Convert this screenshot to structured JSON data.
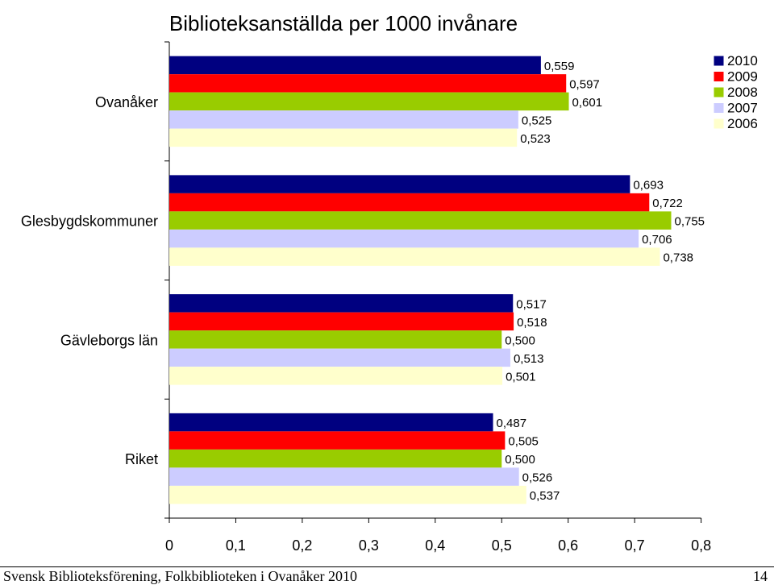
{
  "chart_data": {
    "type": "bar",
    "orientation": "horizontal",
    "title": "Biblioteksanställda per 1000 invånare",
    "xlabel": "",
    "ylabel": "",
    "xlim": [
      0,
      0.8
    ],
    "x_ticks": [
      "0",
      "0,1",
      "0,2",
      "0,3",
      "0,4",
      "0,5",
      "0,6",
      "0,7",
      "0,8"
    ],
    "grid": false,
    "legend_position": "top-right",
    "categories": [
      "Ovanåker",
      "Glesbygdskommuner",
      "Gävleborgs län",
      "Riket"
    ],
    "series": [
      {
        "name": "2010",
        "color": "#000080",
        "values": [
          0.559,
          0.693,
          0.517,
          0.487
        ],
        "labels": [
          "0,559",
          "0,693",
          "0,517",
          "0,487"
        ]
      },
      {
        "name": "2009",
        "color": "#ff0000",
        "values": [
          0.597,
          0.722,
          0.518,
          0.505
        ],
        "labels": [
          "0,597",
          "0,722",
          "0,518",
          "0,505"
        ]
      },
      {
        "name": "2008",
        "color": "#99cc00",
        "values": [
          0.601,
          0.755,
          0.5,
          0.5
        ],
        "labels": [
          "0,601",
          "0,755",
          "0,500",
          "0,500"
        ]
      },
      {
        "name": "2007",
        "color": "#ccccff",
        "values": [
          0.525,
          0.706,
          0.513,
          0.526
        ],
        "labels": [
          "0,525",
          "0,706",
          "0,513",
          "0,526"
        ]
      },
      {
        "name": "2006",
        "color": "#ffffcc",
        "values": [
          0.523,
          0.738,
          0.501,
          0.537
        ],
        "labels": [
          "0,523",
          "0,738",
          "0,501",
          "0,537"
        ]
      }
    ]
  },
  "footer": {
    "left": "Svensk Biblioteksförening, Folkbiblioteken i Ovanåker 2010",
    "right": "14"
  }
}
